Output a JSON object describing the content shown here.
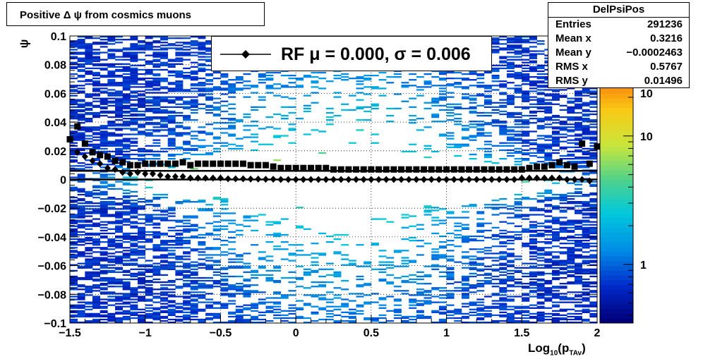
{
  "title": "Positive Δ ψ from cosmics muons",
  "legend": {
    "entry": "RF μ =  0.000, σ =   0.006"
  },
  "stats": {
    "name": "DelPsiPos",
    "rows": [
      {
        "key": "Entries",
        "value": "291236"
      },
      {
        "key": "Mean x",
        "value": "0.3216"
      },
      {
        "key": "Mean y",
        "value": "−0.0002463"
      },
      {
        "key": "RMS x",
        "value": "0.5767"
      },
      {
        "key": "RMS y",
        "value": "0.01496"
      }
    ]
  },
  "chart_data": {
    "type": "heatmap",
    "title": "Positive Δ ψ from cosmics muons",
    "xlabel": "Log10(pTAv)",
    "ylabel": "ψ",
    "xlim": [
      -1.5,
      2
    ],
    "ylim": [
      -0.1,
      0.1
    ],
    "x_ticks": [
      "−1.5",
      "−1",
      "−0.5",
      "0",
      "0.5",
      "1",
      "1.5",
      "2"
    ],
    "y_ticks": [
      "−0.1",
      "−0.08",
      "−0.06",
      "−0.04",
      "−0.02",
      "0",
      "0.02",
      "0.04",
      "0.06",
      "0.08",
      "0.1"
    ],
    "z_scale": "log",
    "z_ticks": [
      "1",
      "10",
      "10"
    ],
    "grid": true,
    "means": {
      "x": [
        -1.45,
        -1.4,
        -1.35,
        -1.3,
        -1.25,
        -1.2,
        -1.15,
        -1.1,
        -1.05,
        -1.0,
        -0.95,
        -0.9,
        -0.85,
        -0.8,
        -0.75,
        -0.7,
        -0.65,
        -0.6,
        -0.55,
        -0.5,
        -0.45,
        -0.4,
        -0.35,
        -0.3,
        -0.25,
        -0.2,
        -0.15,
        -0.1,
        -0.05,
        0.0,
        0.05,
        0.1,
        0.15,
        0.2,
        0.25,
        0.3,
        0.35,
        0.4,
        0.45,
        0.5,
        0.55,
        0.6,
        0.65,
        0.7,
        0.75,
        0.8,
        0.85,
        0.9,
        0.95,
        1.0,
        1.05,
        1.1,
        1.15,
        1.2,
        1.25,
        1.3,
        1.35,
        1.4,
        1.45,
        1.5,
        1.55,
        1.6,
        1.65,
        1.7,
        1.75,
        1.8,
        1.85,
        1.9,
        1.95
      ],
      "y": [
        0.019,
        0.016,
        0.013,
        0.011,
        0.008,
        0.007,
        0.005,
        0.004,
        0.005,
        0.004,
        0.004,
        0.003,
        0.002,
        0.002,
        0.002,
        0.001,
        0.001,
        0.001,
        0.001,
        0.001,
        0.0005,
        0.0005,
        0.0005,
        0.0003,
        0.0003,
        0.0002,
        0.0002,
        0.0,
        0.0,
        0.0,
        0.0,
        0.0,
        0.0,
        0.0,
        0.0,
        0.0,
        0.0,
        0.0,
        0.0,
        0.0,
        0.0,
        0.0,
        0.0,
        0.0,
        0.0,
        0.0,
        0.0,
        0.0,
        0.0,
        0.0,
        0.0,
        0.0,
        0.0,
        0.0,
        0.0,
        0.0,
        0.0,
        0.0,
        0.0,
        0.001,
        0.001,
        0.001,
        0.001,
        0.001,
        0.001,
        0.0,
        0.0,
        0.0,
        -0.001
      ]
    },
    "sigmas": {
      "x": [
        -1.5,
        -1.45,
        -1.4,
        -1.35,
        -1.3,
        -1.25,
        -1.2,
        -1.15,
        -1.1,
        -1.05,
        -1.0,
        -0.95,
        -0.9,
        -0.85,
        -0.8,
        -0.75,
        -0.7,
        -0.65,
        -0.6,
        -0.55,
        -0.5,
        -0.45,
        -0.4,
        -0.35,
        -0.3,
        -0.25,
        -0.2,
        -0.15,
        -0.1,
        -0.05,
        0.0,
        0.05,
        0.1,
        0.15,
        0.2,
        0.25,
        0.3,
        0.35,
        0.4,
        0.45,
        0.5,
        0.55,
        0.6,
        0.65,
        0.7,
        0.75,
        0.8,
        0.85,
        0.9,
        0.95,
        1.0,
        1.05,
        1.1,
        1.15,
        1.2,
        1.25,
        1.3,
        1.35,
        1.4,
        1.45,
        1.5,
        1.55,
        1.6,
        1.65,
        1.7,
        1.75,
        1.8,
        1.85,
        1.9,
        1.95,
        2.0
      ],
      "y": [
        0.028,
        0.037,
        0.025,
        0.019,
        0.017,
        0.016,
        0.013,
        0.012,
        0.01,
        0.01,
        0.011,
        0.011,
        0.011,
        0.011,
        0.011,
        0.012,
        0.01,
        0.011,
        0.011,
        0.011,
        0.011,
        0.011,
        0.011,
        0.011,
        0.01,
        0.01,
        0.01,
        0.009,
        0.008,
        0.008,
        0.008,
        0.008,
        0.008,
        0.008,
        0.008,
        0.007,
        0.007,
        0.007,
        0.007,
        0.007,
        0.007,
        0.007,
        0.007,
        0.007,
        0.007,
        0.007,
        0.007,
        0.007,
        0.007,
        0.007,
        0.007,
        0.007,
        0.007,
        0.007,
        0.007,
        0.007,
        0.007,
        0.007,
        0.007,
        0.007,
        0.007,
        0.008,
        0.009,
        0.009,
        0.01,
        0.012,
        0.01,
        0.009,
        0.025,
        0.011,
        0.023
      ]
    },
    "fit_line": {
      "mu": 0.0,
      "sigma": 0.006
    },
    "colors": {
      "zero_line": "#000000",
      "marker": "#000000"
    }
  }
}
